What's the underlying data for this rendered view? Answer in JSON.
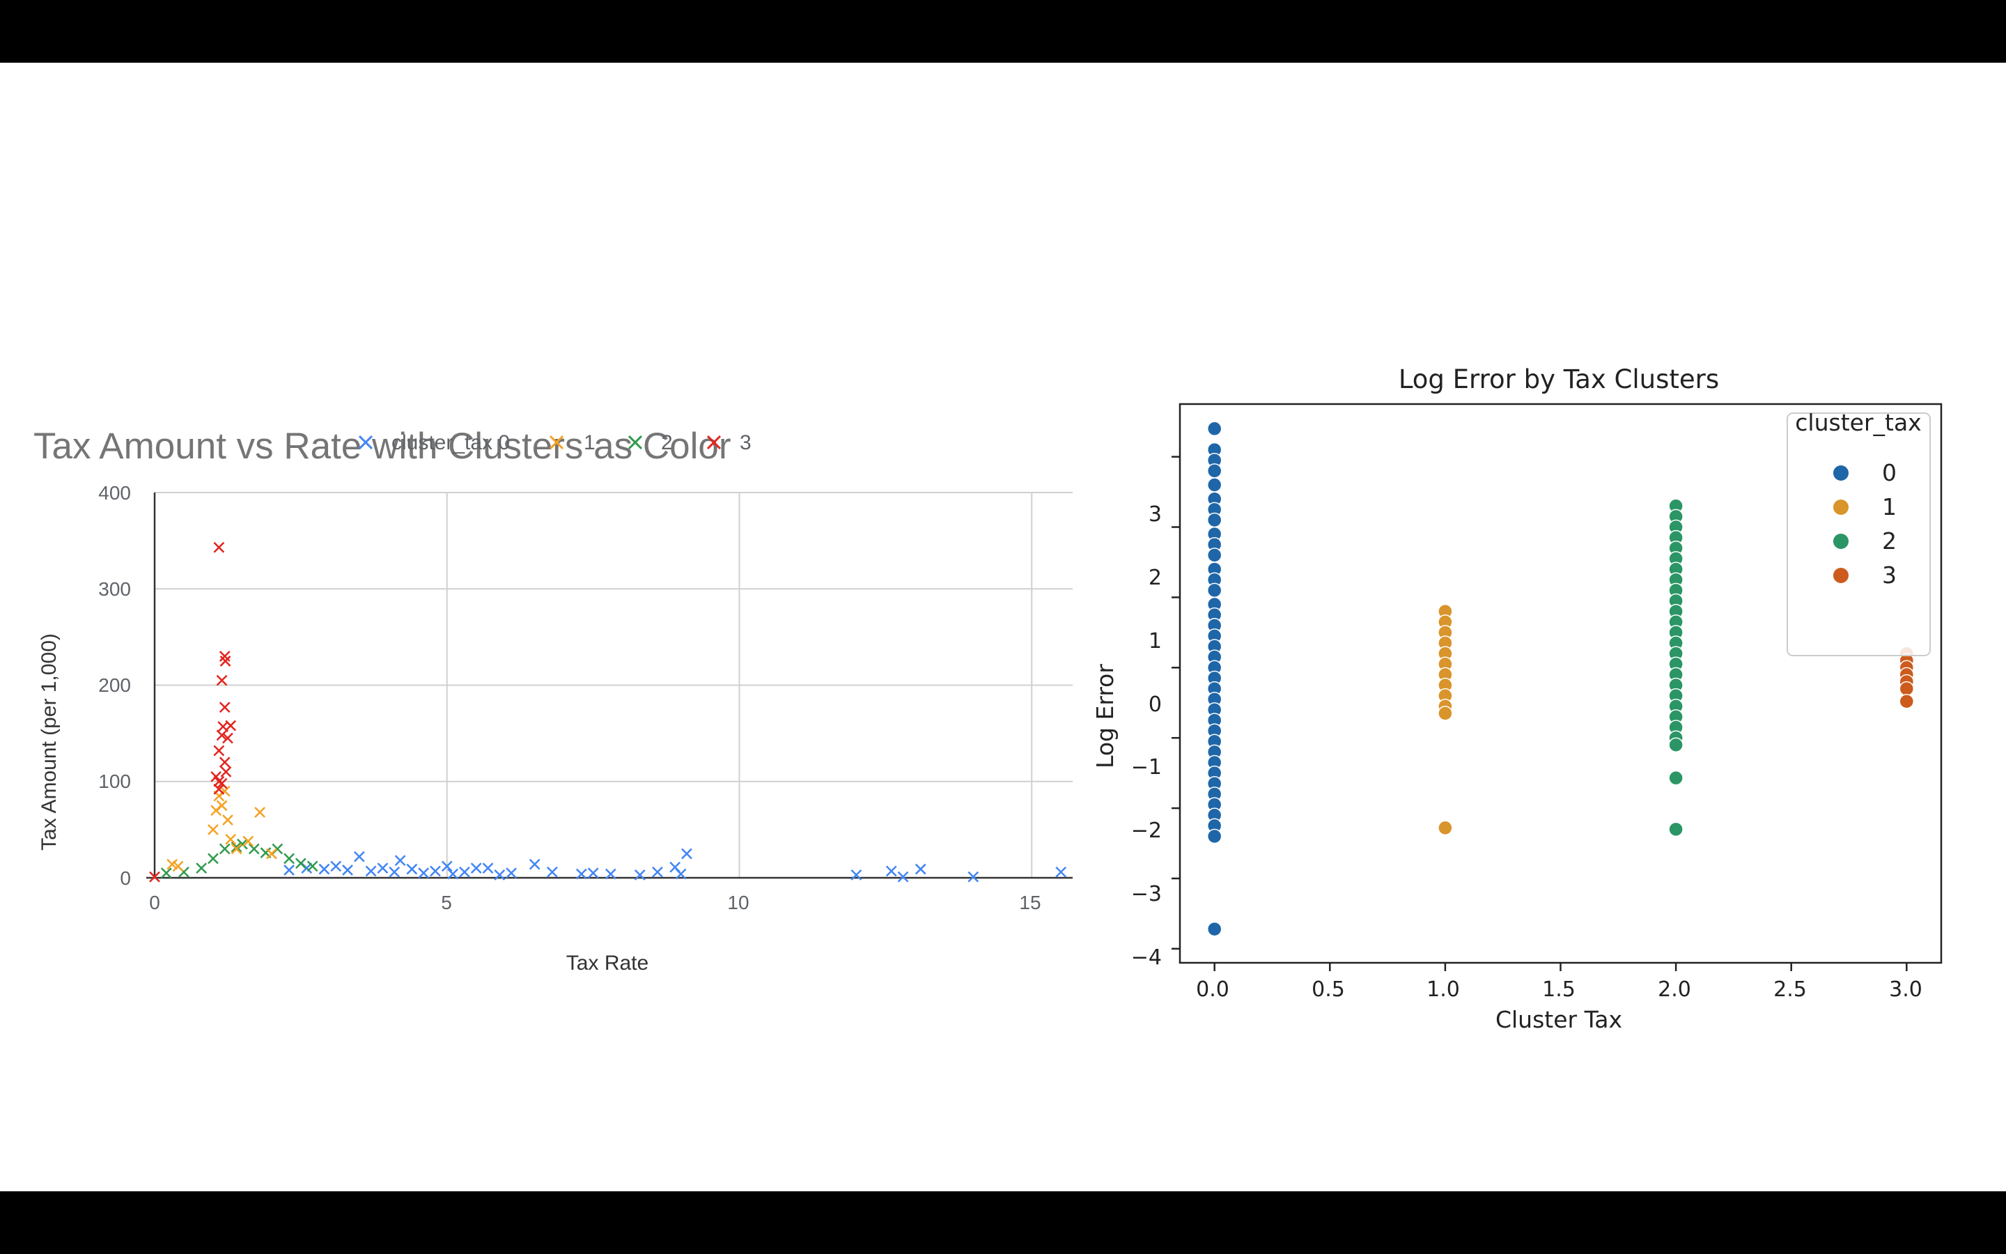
{
  "colors": {
    "background": "#ffffff",
    "letterbox": "#000000",
    "left_series": [
      "#4285f4",
      "#f4a223",
      "#2e9a4c",
      "#e3231e"
    ],
    "right_series": [
      "#1f66a8",
      "#d9942b",
      "#2b9565",
      "#cc5b1d"
    ]
  },
  "left_chart": {
    "title": "Tax Amount vs Rate with Clusters as Color",
    "legend": [
      "cluster_tax 0",
      "1",
      "2",
      "3"
    ],
    "marker": "x",
    "xlabel": "Tax Rate",
    "ylabel": "Tax Amount (per 1,000)",
    "x_ticks": [
      "0",
      "5",
      "10",
      "15"
    ],
    "y_ticks": [
      "0",
      "100",
      "200",
      "300",
      "400"
    ]
  },
  "right_chart": {
    "title": "Log Error by Tax Clusters",
    "legend_title": "cluster_tax",
    "legend": [
      "0",
      "1",
      "2",
      "3"
    ],
    "xlabel": "Cluster Tax",
    "ylabel": "Log Error",
    "x_ticks": [
      "0.0",
      "0.5",
      "1.0",
      "1.5",
      "2.0",
      "2.5",
      "3.0"
    ],
    "y_ticks": [
      "−4",
      "−3",
      "−2",
      "−1",
      "0",
      "1",
      "2",
      "3"
    ]
  },
  "chart_data": [
    {
      "type": "scatter",
      "title": "Tax Amount vs Rate with Clusters as Color",
      "xlabel": "Tax Rate",
      "ylabel": "Tax Amount (per 1,000)",
      "xlim": [
        0,
        15.7
      ],
      "ylim": [
        0,
        400
      ],
      "grid": true,
      "legend_position": "top-center",
      "series": [
        {
          "name": "cluster_tax 0",
          "points": [
            [
              2.3,
              8
            ],
            [
              2.6,
              10
            ],
            [
              2.9,
              9
            ],
            [
              3.1,
              12
            ],
            [
              3.3,
              8
            ],
            [
              3.5,
              22
            ],
            [
              3.7,
              7
            ],
            [
              3.9,
              10
            ],
            [
              4.1,
              6
            ],
            [
              4.2,
              18
            ],
            [
              4.4,
              9
            ],
            [
              4.6,
              5
            ],
            [
              4.8,
              7
            ],
            [
              5.0,
              12
            ],
            [
              5.1,
              4
            ],
            [
              5.3,
              6
            ],
            [
              5.5,
              10
            ],
            [
              5.7,
              10
            ],
            [
              5.9,
              3
            ],
            [
              6.1,
              5
            ],
            [
              6.5,
              14
            ],
            [
              6.8,
              6
            ],
            [
              7.3,
              4
            ],
            [
              7.5,
              5
            ],
            [
              7.8,
              4
            ],
            [
              8.3,
              3
            ],
            [
              8.6,
              6
            ],
            [
              8.9,
              11
            ],
            [
              9.1,
              25
            ],
            [
              9.0,
              4
            ],
            [
              12.0,
              3
            ],
            [
              12.6,
              7
            ],
            [
              12.8,
              1
            ],
            [
              13.1,
              9
            ],
            [
              14.0,
              1
            ],
            [
              15.5,
              6
            ]
          ]
        },
        {
          "name": "1",
          "points": [
            [
              0.3,
              14
            ],
            [
              0.4,
              12
            ],
            [
              1.0,
              50
            ],
            [
              1.05,
              70
            ],
            [
              1.1,
              85
            ],
            [
              1.15,
              75
            ],
            [
              1.2,
              90
            ],
            [
              1.25,
              60
            ],
            [
              1.3,
              40
            ],
            [
              1.4,
              30
            ],
            [
              1.6,
              38
            ],
            [
              1.8,
              68
            ],
            [
              2.0,
              25
            ]
          ]
        },
        {
          "name": "2",
          "points": [
            [
              0.2,
              5
            ],
            [
              0.5,
              6
            ],
            [
              0.8,
              10
            ],
            [
              1.0,
              20
            ],
            [
              1.2,
              30
            ],
            [
              1.4,
              32
            ],
            [
              1.5,
              35
            ],
            [
              1.7,
              30
            ],
            [
              1.9,
              26
            ],
            [
              2.1,
              30
            ],
            [
              2.3,
              20
            ],
            [
              2.5,
              15
            ],
            [
              2.7,
              12
            ]
          ]
        },
        {
          "name": "3",
          "points": [
            [
              0.0,
              1
            ],
            [
              1.1,
              343
            ],
            [
              1.2,
              230
            ],
            [
              1.21,
              225
            ],
            [
              1.15,
              205
            ],
            [
              1.2,
              177
            ],
            [
              1.17,
              157
            ],
            [
              1.3,
              158
            ],
            [
              1.15,
              148
            ],
            [
              1.25,
              145
            ],
            [
              1.1,
              132
            ],
            [
              1.2,
              120
            ],
            [
              1.05,
              105
            ],
            [
              1.1,
              100
            ],
            [
              1.15,
              98
            ],
            [
              1.22,
              110
            ],
            [
              1.1,
              92
            ]
          ]
        }
      ]
    },
    {
      "type": "scatter",
      "title": "Log Error by Tax Clusters",
      "xlabel": "Cluster Tax",
      "ylabel": "Log Error",
      "xlim": [
        -0.15,
        3.15
      ],
      "ylim": [
        -4.2,
        3.75
      ],
      "grid": false,
      "legend_title": "cluster_tax",
      "legend_position": "top-right",
      "series": [
        {
          "name": "0",
          "x": 0.0,
          "y": [
            3.4,
            3.1,
            2.95,
            2.8,
            2.6,
            2.4,
            2.25,
            2.1,
            1.9,
            1.75,
            1.6,
            1.4,
            1.25,
            1.1,
            0.9,
            0.75,
            0.6,
            0.45,
            0.3,
            0.15,
            0.0,
            -0.15,
            -0.3,
            -0.45,
            -0.6,
            -0.75,
            -0.9,
            -1.05,
            -1.2,
            -1.35,
            -1.5,
            -1.65,
            -1.8,
            -1.95,
            -2.1,
            -2.25,
            -2.4,
            -3.72
          ]
        },
        {
          "name": "1",
          "x": 1.0,
          "y": [
            0.8,
            0.65,
            0.5,
            0.35,
            0.2,
            0.05,
            -0.1,
            -0.25,
            -0.4,
            -0.55,
            -0.65,
            -2.28
          ]
        },
        {
          "name": "2",
          "x": 2.0,
          "y": [
            2.3,
            2.15,
            2.0,
            1.85,
            1.7,
            1.55,
            1.4,
            1.25,
            1.1,
            0.95,
            0.8,
            0.65,
            0.5,
            0.35,
            0.2,
            0.05,
            -0.1,
            -0.25,
            -0.4,
            -0.55,
            -0.7,
            -0.85,
            -1.0,
            -1.1,
            -1.57,
            -2.3
          ]
        },
        {
          "name": "3",
          "x": 3.0,
          "y": [
            0.2,
            0.1,
            0.0,
            -0.1,
            -0.2,
            -0.3,
            -0.48
          ]
        }
      ]
    }
  ]
}
